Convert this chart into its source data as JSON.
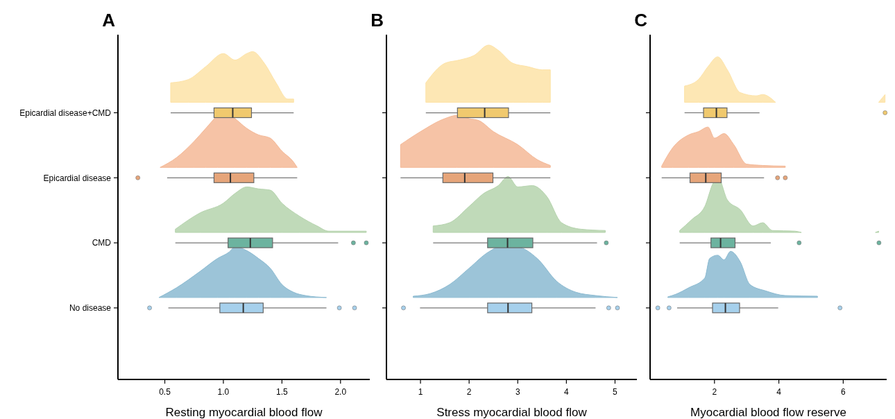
{
  "chart_data": [
    {
      "type": "box",
      "orientation": "horizontal",
      "title": "A",
      "xlabel": "Resting myocardial blood flow",
      "categories": [
        "Epicardial disease+CMD",
        "Epicardial disease",
        "CMD",
        "No disease"
      ],
      "colors": [
        "#f0c96e",
        "#e6a57a",
        "#6cb39f",
        "#a6d0ec"
      ],
      "xlim": [
        0.1,
        2.25
      ],
      "xticks": [
        {
          "value": 0.5,
          "label": "0.5"
        },
        {
          "value": 1,
          "label": "1.0"
        },
        {
          "value": 1.5,
          "label": "1.5"
        },
        {
          "value": 2,
          "label": "2.0"
        }
      ],
      "grid": false,
      "boxes": [
        {
          "low": 0.55,
          "q1": 0.92,
          "median": 1.08,
          "q3": 1.24,
          "high": 1.6
        },
        {
          "low": 0.52,
          "q1": 0.92,
          "median": 1.06,
          "q3": 1.26,
          "high": 1.63,
          "outliers": [
            0.27
          ]
        },
        {
          "low": 0.59,
          "q1": 1.04,
          "median": 1.23,
          "q3": 1.42,
          "high": 1.98,
          "outliers": [
            2.11,
            2.22
          ]
        },
        {
          "low": 0.53,
          "q1": 0.97,
          "median": 1.17,
          "q3": 1.34,
          "high": 1.88,
          "outliers": [
            0.37,
            1.99,
            2.12
          ]
        }
      ]
    },
    {
      "type": "box",
      "orientation": "horizontal",
      "title": "B",
      "xlabel": "Stress myocardial blood flow",
      "tick_labels": "x",
      "colors": [
        "#f0c96e",
        "#e6a57a",
        "#6cb39f",
        "#a6d0ec"
      ],
      "xlim": [
        0.3,
        5.45
      ],
      "xticks": [
        1,
        2,
        3,
        4,
        5
      ],
      "grid": false,
      "boxes": [
        {
          "low": 1.11,
          "q1": 1.76,
          "median": 2.32,
          "q3": 2.81,
          "high": 3.67
        },
        {
          "low": 0.59,
          "q1": 1.46,
          "median": 1.91,
          "q3": 2.49,
          "high": 3.67
        },
        {
          "low": 1.26,
          "q1": 2.38,
          "median": 2.79,
          "q3": 3.31,
          "high": 4.63,
          "outliers": [
            4.82
          ]
        },
        {
          "low": 0.99,
          "q1": 2.38,
          "median": 2.8,
          "q3": 3.29,
          "high": 4.6,
          "outliers": [
            0.65,
            4.87,
            5.05
          ]
        }
      ]
    },
    {
      "type": "box",
      "orientation": "horizontal",
      "title": "C",
      "xlabel": "Myocardial blood flow reserve",
      "tick_labels": "x",
      "colors": [
        "#f0c96e",
        "#e6a57a",
        "#6cb39f",
        "#a6d0ec"
      ],
      "xlim": [
        0,
        7.35
      ],
      "xticks": [
        2,
        4,
        6
      ],
      "grid": false,
      "boxes": [
        {
          "low": 1.07,
          "q1": 1.66,
          "median": 2.06,
          "q3": 2.39,
          "high": 3.4,
          "outliers": [
            7.3
          ]
        },
        {
          "low": 0.36,
          "q1": 1.24,
          "median": 1.73,
          "q3": 2.21,
          "high": 3.54,
          "outliers": [
            3.96,
            4.2
          ]
        },
        {
          "low": 0.92,
          "q1": 1.89,
          "median": 2.19,
          "q3": 2.64,
          "high": 3.75,
          "outliers": [
            4.63,
            7.11
          ]
        },
        {
          "low": 0.84,
          "q1": 1.94,
          "median": 2.34,
          "q3": 2.78,
          "high": 3.98,
          "outliers": [
            0.24,
            0.59,
            5.9
          ]
        }
      ]
    }
  ]
}
